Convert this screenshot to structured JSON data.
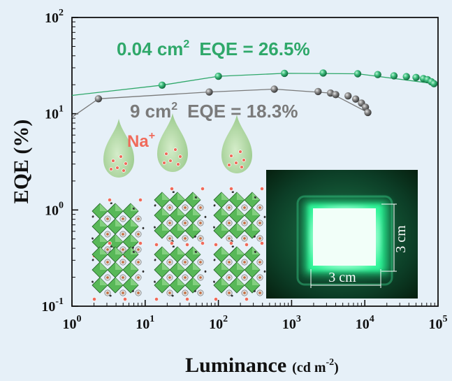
{
  "chart_data": {
    "type": "scatter",
    "xlabel": "Luminance",
    "xunit": "(cd m",
    "xunit_sup": "-2",
    "xunit_close": ")",
    "ylabel": "EQE (%)",
    "xscale": "log",
    "yscale": "log",
    "xlim": [
      1,
      100000
    ],
    "ylim": [
      0.1,
      100
    ],
    "x_ticks": [
      {
        "base": "10",
        "exp": "0"
      },
      {
        "base": "10",
        "exp": "1"
      },
      {
        "base": "10",
        "exp": "2"
      },
      {
        "base": "10",
        "exp": "3"
      },
      {
        "base": "10",
        "exp": "4"
      },
      {
        "base": "10",
        "exp": "5"
      }
    ],
    "y_ticks": [
      {
        "base": "10",
        "exp": "-1"
      },
      {
        "base": "10",
        "exp": "0"
      },
      {
        "base": "10",
        "exp": "1"
      },
      {
        "base": "10",
        "exp": "2"
      }
    ],
    "series": [
      {
        "name": "0.04 cm² EQE = 26.5%",
        "color": "#2fa86a",
        "points": [
          [
            17,
            19.8
          ],
          [
            100,
            24.5
          ],
          [
            800,
            26.3
          ],
          [
            2700,
            26.5
          ],
          [
            8000,
            26.0
          ],
          [
            15000,
            25.5
          ],
          [
            25000,
            24.8
          ],
          [
            37000,
            24.3
          ],
          [
            50000,
            23.8
          ],
          [
            63000,
            23.2
          ],
          [
            72000,
            22.6
          ],
          [
            81000,
            21.5
          ],
          [
            88000,
            20.5
          ]
        ]
      },
      {
        "name": "9 cm² EQE = 18.3%",
        "color": "#7a7a7a",
        "points": [
          [
            2.3,
            14.3
          ],
          [
            75,
            16.8
          ],
          [
            580,
            18.0
          ],
          [
            2300,
            17.0
          ],
          [
            3400,
            16.4
          ],
          [
            4000,
            15.8
          ],
          [
            5900,
            15.3
          ],
          [
            7500,
            14.2
          ],
          [
            9000,
            12.9
          ],
          [
            10200,
            11.7
          ],
          [
            11000,
            10.3
          ]
        ]
      }
    ],
    "fit_lines": [
      {
        "color": "#2fa86a",
        "points": [
          [
            1,
            15.5
          ],
          [
            17,
            19.8
          ],
          [
            100,
            24.5
          ],
          [
            800,
            26.3
          ],
          [
            8000,
            26.0
          ],
          [
            88000,
            20.5
          ]
        ]
      },
      {
        "color": "#7a7a7a",
        "points": [
          [
            1,
            9.2
          ],
          [
            2.3,
            14.3
          ],
          [
            75,
            16.8
          ],
          [
            580,
            18.0
          ],
          [
            3400,
            16.4
          ],
          [
            11000,
            10.3
          ]
        ]
      }
    ]
  },
  "annotations": {
    "green_area": "0.04 cm",
    "green_area_sup": "2",
    "green_eqe": "EQE = 26.5%",
    "gray_area": "9 cm",
    "gray_area_sup": "2",
    "gray_eqe": "EQE = 18.3%",
    "ion": "Na",
    "ion_sup": "+"
  },
  "photo": {
    "width_label": "3 cm",
    "height_label": "3 cm"
  },
  "colors": {
    "green_series": "#2fa86a",
    "gray_series": "#7a7a7a",
    "ion_text": "#f06a5a",
    "background": "#e6f0f8",
    "glow": "#1aff8c"
  },
  "icons": [
    "droplet-icon",
    "perovskite-crystal-illustration",
    "device-photo"
  ]
}
